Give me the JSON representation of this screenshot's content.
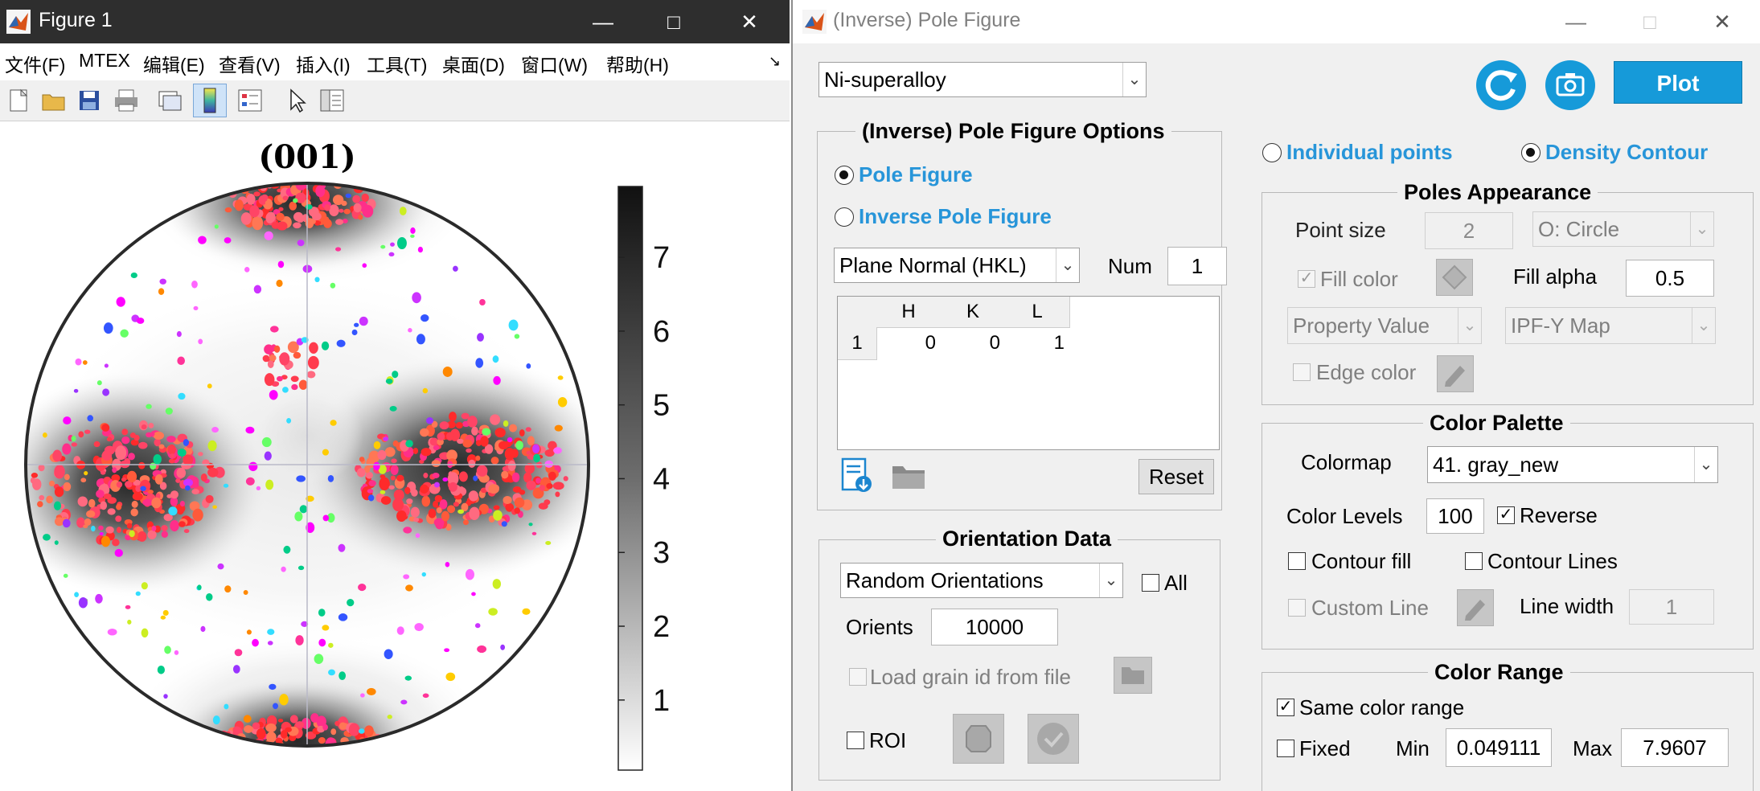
{
  "figure": {
    "title": "Figure 1",
    "menu": [
      "文件(F)",
      "MTEX",
      "编辑(E)",
      "查看(V)",
      "插入(I)",
      "工具(T)",
      "桌面(D)",
      "窗口(W)",
      "帮助(H)"
    ],
    "plot_title": "(001)",
    "colorbar_ticks": [
      "1",
      "2",
      "3",
      "4",
      "5",
      "6",
      "7"
    ]
  },
  "dialog": {
    "title": "(Inverse) Pole Figure",
    "material": "Ni-superalloy",
    "plot_label": "Plot",
    "pf_options": {
      "title": "(Inverse) Pole Figure Options",
      "pole_figure": "Pole Figure",
      "inverse_pole_figure": "Inverse Pole Figure",
      "plane_type": "Plane Normal (HKL)",
      "num_label": "Num",
      "num_value": "1",
      "table_headers": [
        "H",
        "K",
        "L"
      ],
      "row_index": "1",
      "row_values": [
        "0",
        "0",
        "1"
      ],
      "reset": "Reset"
    },
    "orientation": {
      "title": "Orientation Data",
      "source": "Random Orientations",
      "all_label": "All",
      "orients_label": "Orients",
      "orients_value": "10000",
      "load_grain": "Load grain id from file",
      "roi": "ROI"
    },
    "mode": {
      "individual": "Individual points",
      "density": "Density Contour"
    },
    "poles": {
      "title": "Poles Appearance",
      "point_size_label": "Point size",
      "point_size": "2",
      "marker": "O: Circle",
      "fill_color": "Fill color",
      "fill_alpha_label": "Fill alpha",
      "fill_alpha": "0.5",
      "property": "Property Value",
      "map": "IPF-Y Map",
      "edge_color": "Edge color"
    },
    "palette": {
      "title": "Color Palette",
      "colormap_label": "Colormap",
      "colormap": "41. gray_new",
      "levels_label": "Color Levels",
      "levels": "100",
      "reverse": "Reverse",
      "contour_fill": "Contour fill",
      "contour_lines": "Contour Lines",
      "custom_line": "Custom Line",
      "line_width_label": "Line width",
      "line_width": "1"
    },
    "range": {
      "title": "Color Range",
      "same": "Same color range",
      "fixed": "Fixed",
      "min_label": "Min",
      "min": "0.049111",
      "max_label": "Max",
      "max": "7.9607"
    }
  }
}
